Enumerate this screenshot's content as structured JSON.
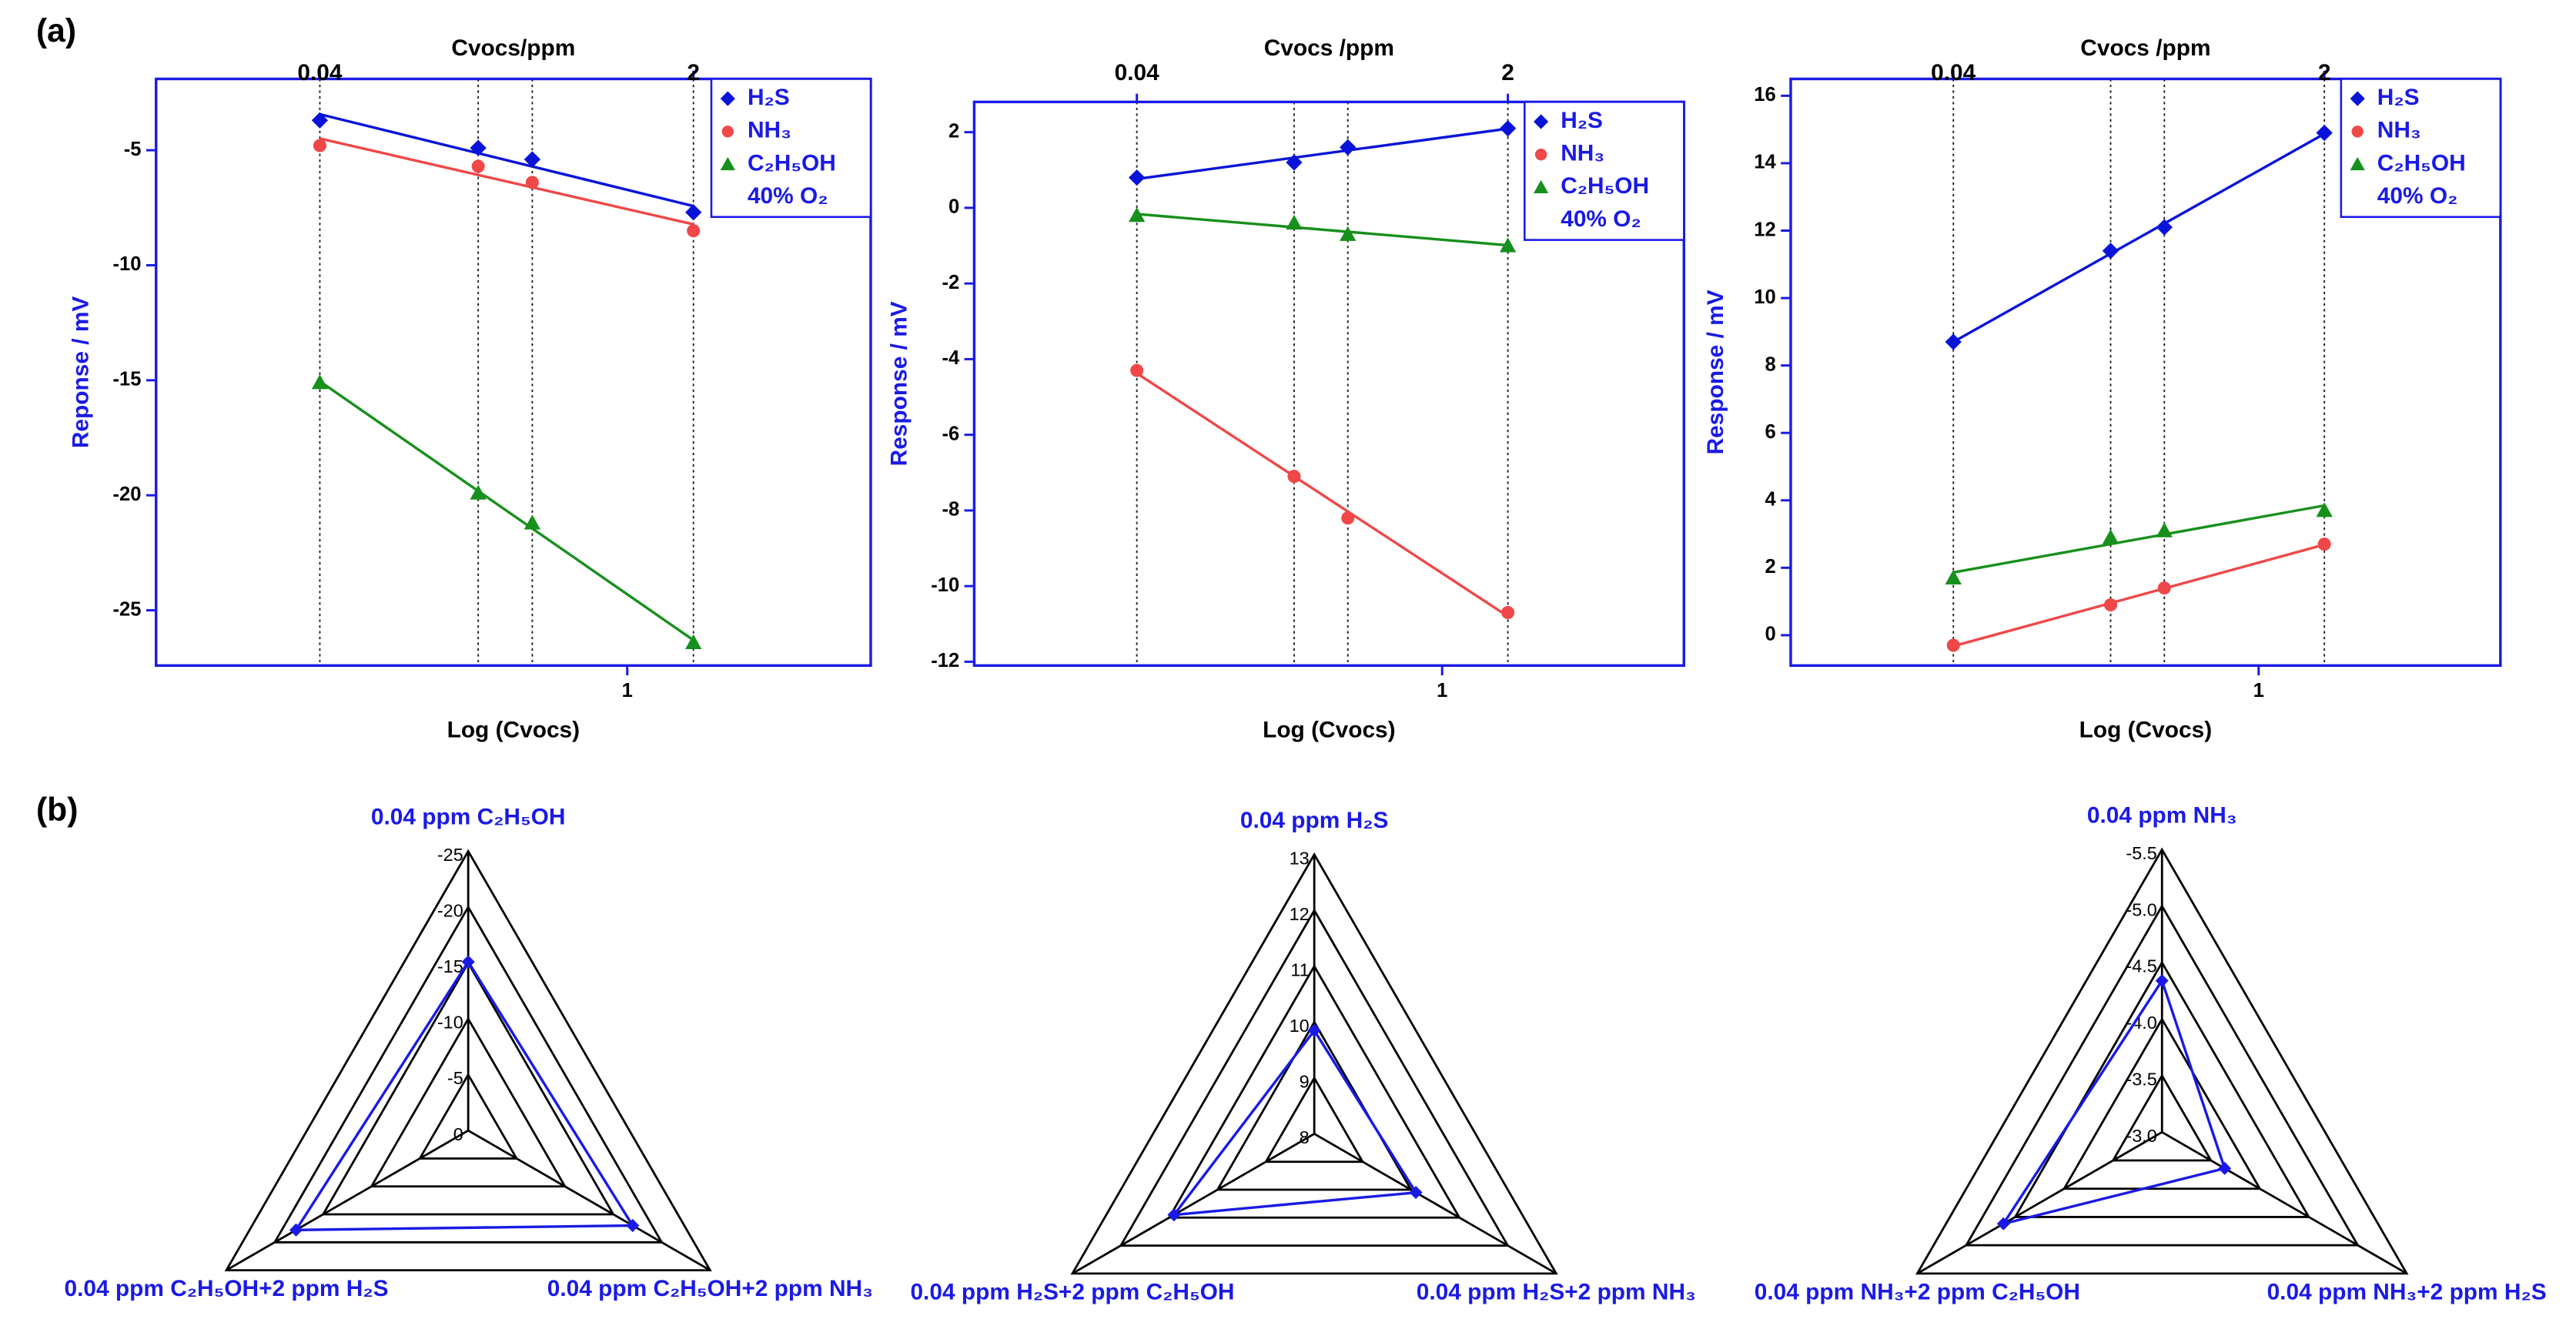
{
  "panel_labels": [
    "(a)",
    "(b)"
  ],
  "chart_data": [
    {
      "type": "line",
      "title": "Cvocs/ppm",
      "x_label": "Log (Cvocs)",
      "y_label": "Reponse / mV",
      "xscale": "log",
      "x": [
        0.04,
        0.21,
        0.37,
        2
      ],
      "xlim": [
        0.0072,
        12.8
      ],
      "xticks": [
        1
      ],
      "x2ticks": [
        0.04,
        2
      ],
      "ylim": [
        -27.4,
        -1.9
      ],
      "yticks": [
        -25,
        -20,
        -15,
        -10,
        -5
      ],
      "axis_color": "#1a1ae6",
      "legend": "upper right",
      "legend_note": "40% O₂",
      "series": [
        {
          "name": "H₂S",
          "color": "#0a14d8",
          "marker": "diamond",
          "values": [
            -3.7,
            -4.9,
            -5.4,
            -7.7
          ]
        },
        {
          "name": "NH₃",
          "color": "#f04848",
          "marker": "circle",
          "values": [
            -4.8,
            -5.7,
            -6.4,
            -8.5
          ]
        },
        {
          "name": "C₂H₅OH",
          "color": "#17901c",
          "marker": "triangle",
          "values": [
            -15.1,
            -19.9,
            -21.2,
            -26.4
          ]
        }
      ]
    },
    {
      "type": "line",
      "title": "Cvocs /ppm",
      "x_label": "Log (Cvocs)",
      "y_label": "Response / mV",
      "xscale": "log",
      "x": [
        0.04,
        0.21,
        0.37,
        2
      ],
      "xlim": [
        0.0072,
        12.8
      ],
      "xticks": [
        1
      ],
      "x2ticks": [
        0.04,
        2
      ],
      "ylim": [
        -12.1,
        2.8
      ],
      "yticks": [
        -12,
        -10,
        -8,
        -6,
        -4,
        -2,
        0,
        2
      ],
      "axis_color": "#1a1ae6",
      "legend": "upper right",
      "legend_note": "40% O₂",
      "series": [
        {
          "name": "H₂S",
          "color": "#0a14d8",
          "marker": "diamond",
          "values": [
            0.8,
            1.2,
            1.6,
            2.1
          ]
        },
        {
          "name": "NH₃",
          "color": "#f04848",
          "marker": "circle",
          "values": [
            -4.3,
            -7.1,
            -8.2,
            -10.7
          ]
        },
        {
          "name": "C₂H₅OH",
          "color": "#17901c",
          "marker": "triangle",
          "values": [
            -0.2,
            -0.4,
            -0.7,
            -1.0
          ]
        }
      ]
    },
    {
      "type": "line",
      "title": "Cvocs /ppm",
      "x_label": "Log (Cvocs)",
      "y_label": "Response / mV",
      "xscale": "log",
      "x": [
        0.04,
        0.21,
        0.37,
        2
      ],
      "xlim": [
        0.0072,
        12.8
      ],
      "xticks": [
        1
      ],
      "x2ticks": [
        0.04,
        2
      ],
      "ylim": [
        -0.9,
        16.5
      ],
      "yticks": [
        0,
        2,
        4,
        6,
        8,
        10,
        12,
        14,
        16
      ],
      "axis_color": "#1a1ae6",
      "legend": "upper right",
      "legend_note": "40% O₂",
      "series": [
        {
          "name": "H₂S",
          "color": "#0a14d8",
          "marker": "diamond",
          "values": [
            8.7,
            11.4,
            12.1,
            14.9
          ]
        },
        {
          "name": "NH₃",
          "color": "#f04848",
          "marker": "circle",
          "values": [
            -0.3,
            0.9,
            1.4,
            2.7
          ]
        },
        {
          "name": "C₂H₅OH",
          "color": "#17901c",
          "marker": "triangle",
          "values": [
            1.7,
            2.9,
            3.1,
            3.7
          ]
        }
      ]
    },
    {
      "type": "radar",
      "categories": [
        "0.04 ppm C₂H₅OH",
        "0.04 ppm C₂H₅OH+2 ppm NH₃",
        "0.04 ppm C₂H₅OH+2 ppm H₂S"
      ],
      "values": [
        -15.1,
        -17.0,
        -17.8
      ],
      "rlim": [
        0,
        -25
      ],
      "rticks": [
        -25,
        -20,
        -15,
        -10,
        -5,
        0
      ],
      "color": "#1a1ae6"
    },
    {
      "type": "radar",
      "categories": [
        "0.04 ppm H₂S",
        "0.04 ppm H₂S+2 ppm NH₃",
        "0.04 ppm H₂S+2 ppm C₂H₅OH"
      ],
      "values": [
        9.85,
        10.1,
        10.9
      ],
      "rlim": [
        8,
        13
      ],
      "rticks": [
        13,
        12,
        11,
        10,
        9,
        8
      ],
      "color": "#1a1ae6"
    },
    {
      "type": "radar",
      "categories": [
        "0.04 ppm NH₃",
        "0.04 ppm NH₃+2 ppm H₂S",
        "0.04 ppm NH₃+2 ppm C₂H₅OH"
      ],
      "values": [
        -4.34,
        -3.64,
        -4.62
      ],
      "rlim": [
        -3.0,
        -5.5
      ],
      "rticks": [
        -5.5,
        {
          "value": -5,
          "label": "-5.0"
        },
        {
          "value": -4.5,
          "label": "-4.5"
        },
        {
          "value": -4,
          "label": "-4.0"
        },
        {
          "value": -3.5,
          "label": "-3.5"
        },
        {
          "value": -3,
          "label": "-3.0"
        }
      ],
      "color": "#1a1ae6"
    }
  ]
}
